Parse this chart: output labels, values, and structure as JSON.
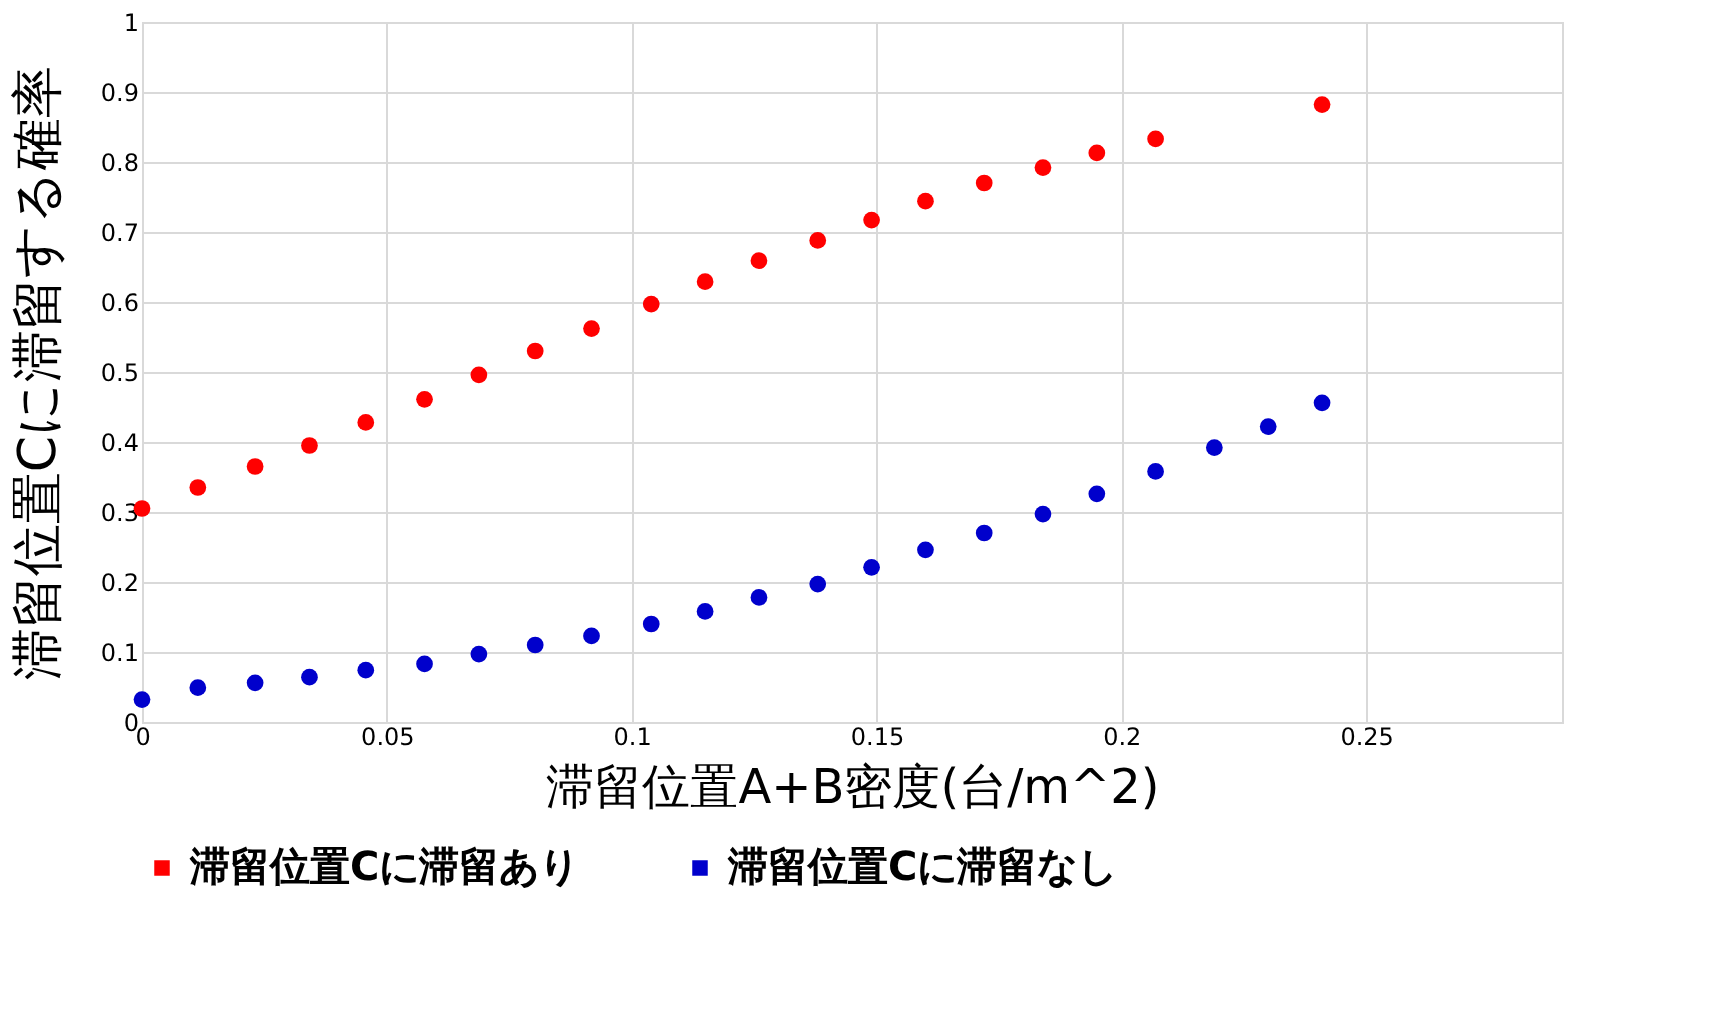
{
  "chart_data": {
    "type": "scatter",
    "xlabel": "滞留位置A+B密度(台/m^2)",
    "ylabel": "滞留位置Cに滞留する確率",
    "x": [
      0,
      0.0114,
      0.0231,
      0.0342,
      0.0457,
      0.0577,
      0.0688,
      0.0803,
      0.0918,
      0.104,
      0.115,
      0.126,
      0.138,
      0.149,
      0.16,
      0.172,
      0.184,
      0.195,
      0.207,
      0.241
    ],
    "series": [
      {
        "name": "滞留位置Cに滞留あり",
        "color": "#ff0000",
        "values": [
          0.305,
          0.335,
          0.365,
          0.395,
          0.428,
          0.461,
          0.496,
          0.53,
          0.562,
          0.597,
          0.629,
          0.659,
          0.688,
          0.717,
          0.744,
          0.77,
          0.792,
          0.813,
          0.833,
          0.882
        ]
      },
      {
        "name": "滞留位置Cに滞留なし",
        "color": "#0000cc",
        "x": [
          0,
          0.0114,
          0.0231,
          0.0342,
          0.0457,
          0.0577,
          0.0688,
          0.0803,
          0.0918,
          0.104,
          0.115,
          0.126,
          0.138,
          0.149,
          0.16,
          0.172,
          0.184,
          0.195,
          0.207,
          0.219,
          0.23,
          0.241
        ],
        "values": [
          0.032,
          0.049,
          0.056,
          0.064,
          0.074,
          0.083,
          0.097,
          0.11,
          0.123,
          0.14,
          0.158,
          0.178,
          0.197,
          0.221,
          0.246,
          0.27,
          0.297,
          0.326,
          0.358,
          0.392,
          0.422,
          0.456
        ]
      }
    ],
    "xlim": [
      0,
      0.29
    ],
    "xticks": [
      0,
      0.05,
      0.1,
      0.15,
      0.2,
      0.25
    ],
    "ylim": [
      0,
      1
    ],
    "yticks": [
      0,
      0.1,
      0.2,
      0.3,
      0.4,
      0.5,
      0.6,
      0.7,
      0.8,
      0.9,
      1
    ],
    "grid": true,
    "legend": "bottom",
    "marker": "circle"
  }
}
